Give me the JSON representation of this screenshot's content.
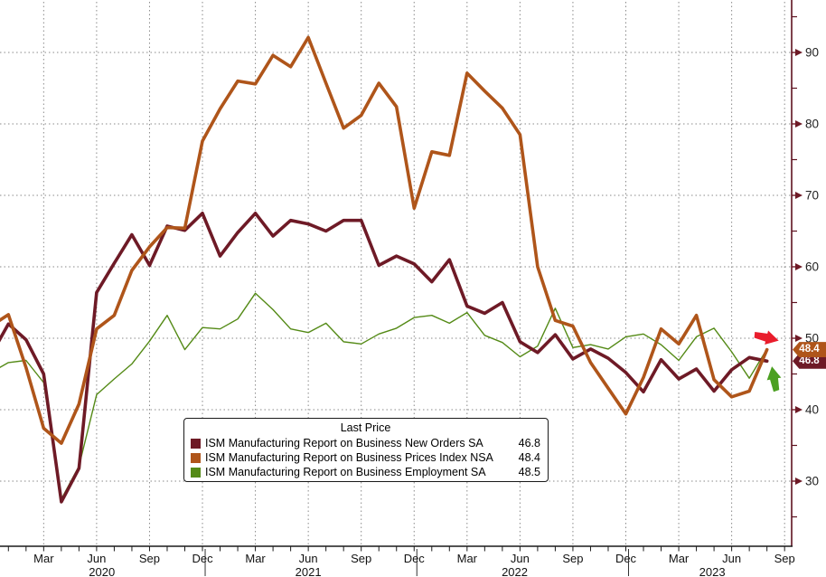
{
  "chart_data": {
    "type": "line",
    "title": "",
    "frequency": "monthly",
    "x_start": "Jan 2020",
    "x_end": "Aug 2023",
    "grid": "dotted",
    "legend_position": "bottom-center-box",
    "y_axis": {
      "side": "right",
      "major_ticks": [
        90,
        80,
        70,
        60,
        50,
        40,
        30
      ],
      "minor_ticks": [
        95,
        85,
        75,
        65,
        55,
        45,
        35,
        25
      ]
    },
    "x_axis": {
      "month_tick_count": 45,
      "quarter_labels": [
        {
          "i": 2,
          "label": "Mar"
        },
        {
          "i": 5,
          "label": "Jun"
        },
        {
          "i": 8,
          "label": "Sep"
        },
        {
          "i": 11,
          "label": "Dec"
        },
        {
          "i": 14,
          "label": "Mar"
        },
        {
          "i": 17,
          "label": "Jun"
        },
        {
          "i": 20,
          "label": "Sep"
        },
        {
          "i": 23,
          "label": "Dec"
        },
        {
          "i": 26,
          "label": "Mar"
        },
        {
          "i": 29,
          "label": "Jun"
        },
        {
          "i": 32,
          "label": "Sep"
        },
        {
          "i": 35,
          "label": "Dec"
        },
        {
          "i": 38,
          "label": "Mar"
        },
        {
          "i": 41,
          "label": "Jun"
        },
        {
          "i": 44,
          "label": "Sep"
        }
      ],
      "year_labels": [
        {
          "i": 5.3,
          "label": "2020"
        },
        {
          "i": 17,
          "label": "2021"
        },
        {
          "i": 28.7,
          "label": "2022"
        },
        {
          "i": 39.9,
          "label": "2023"
        }
      ],
      "year_separators_i": [
        11,
        23,
        35
      ]
    },
    "series": [
      {
        "name": "ISM Manufacturing Report on Business Employment SA",
        "color": "#548A16",
        "width": 1.4,
        "last": 48.5,
        "lead_in": 45.2,
        "values": [
          46.6,
          46.9,
          43.8,
          27.5,
          32.1,
          42.1,
          44.3,
          46.4,
          49.6,
          53.2,
          48.4,
          51.5,
          51.3,
          52.7,
          56.3,
          54.0,
          51.3,
          50.8,
          52.1,
          49.5,
          49.2,
          50.6,
          51.4,
          52.9,
          53.2,
          52.1,
          53.6,
          50.4,
          49.4,
          47.4,
          48.9,
          54.2,
          48.7,
          49.1,
          48.5,
          50.2,
          50.6,
          49.1,
          46.9,
          50.2,
          51.4,
          48.1,
          44.4,
          48.5
        ]
      },
      {
        "name": "ISM Manufacturing Report on Business New Orders SA",
        "color": "#6E1A26",
        "width": 3.6,
        "last": 46.8,
        "lead_in": 47.6,
        "values": [
          52.0,
          49.8,
          45.0,
          27.1,
          31.8,
          56.4,
          60.5,
          64.5,
          60.2,
          65.7,
          65.1,
          67.5,
          61.5,
          64.8,
          67.5,
          64.3,
          66.5,
          66.0,
          65.0,
          66.5,
          66.5,
          60.2,
          61.5,
          60.4,
          57.9,
          61.0,
          54.5,
          53.5,
          55.0,
          49.5,
          48.0,
          50.5,
          47.1,
          48.5,
          47.2,
          45.2,
          42.5,
          47.0,
          44.3,
          45.7,
          42.6,
          45.6,
          47.3,
          46.8
        ]
      },
      {
        "name": "ISM Manufacturing Report on Business Prices Index NSA",
        "color": "#AF551A",
        "width": 3.6,
        "last": 48.4,
        "lead_in": 51.7,
        "values": [
          53.3,
          45.9,
          37.4,
          35.3,
          40.8,
          51.3,
          53.2,
          59.5,
          62.8,
          65.5,
          65.4,
          77.6,
          82.1,
          86.0,
          85.6,
          89.6,
          88.0,
          92.1,
          85.7,
          79.4,
          81.2,
          85.7,
          82.4,
          68.2,
          76.1,
          75.6,
          87.1,
          84.6,
          82.2,
          78.5,
          60.0,
          52.5,
          51.7,
          46.6,
          43.0,
          39.4,
          44.5,
          51.3,
          49.2,
          53.2,
          44.2,
          41.8,
          42.6,
          48.4
        ]
      }
    ]
  },
  "legend": {
    "title": "Last Price",
    "items": [
      {
        "swatch": "#6E1A26",
        "label": "ISM Manufacturing Report on Business New Orders SA",
        "value": "46.8"
      },
      {
        "swatch": "#AF551A",
        "label": "ISM Manufacturing Report on Business Prices Index NSA",
        "value": "48.4"
      },
      {
        "swatch": "#548A16",
        "label": "ISM Manufacturing Report on Business Employment SA",
        "value": "48.5"
      }
    ]
  },
  "price_labels": [
    {
      "value": "46.8",
      "bg": "#6E1A26",
      "at": 46.8
    },
    {
      "value": "48.4",
      "bg": "#AF551A",
      "at": 48.4
    }
  ],
  "annotations": {
    "red_arrow_color": "#E91D2C",
    "green_arrow_color": "#4CA022"
  },
  "colors": {
    "background": "#FFFFFF",
    "grid": "#8A8A8A",
    "y_axis_line": "#5E1220",
    "y_tick_arrow": "#6E1A26",
    "x_axis_line": "#1A1A1A",
    "tick_label": "#222222"
  }
}
